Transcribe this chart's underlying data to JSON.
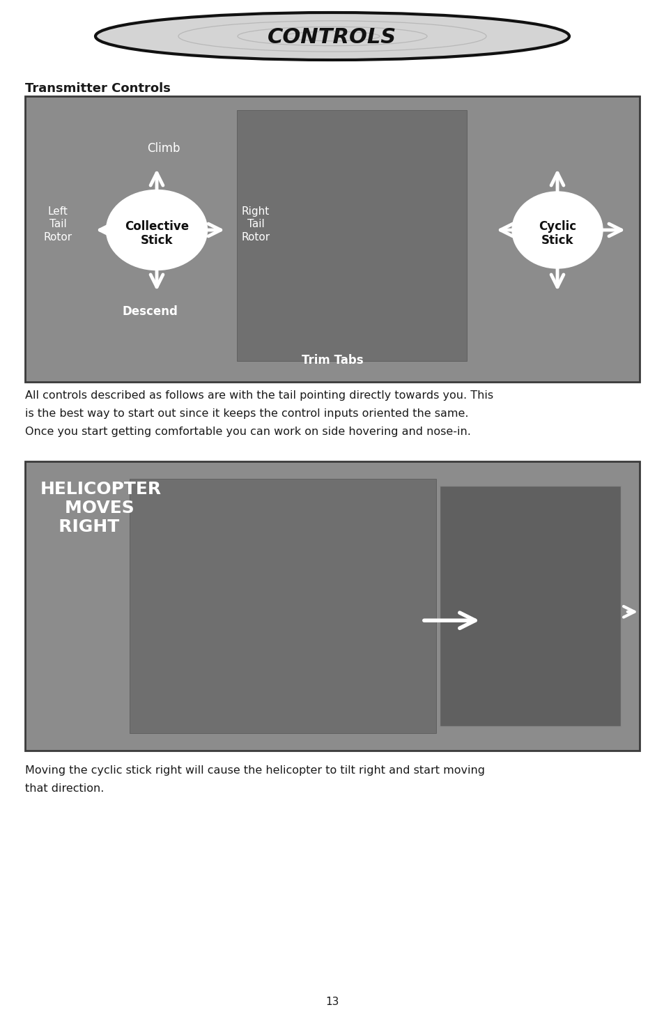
{
  "bg_color": "#ffffff",
  "title_text": "CONTROLS",
  "section1_heading": "Transmitter Controls",
  "image1_bg": "#8c8c8c",
  "image2_bg": "#8c8c8c",
  "image2_heli_text": "HELICOPTER\n    MOVES\n   RIGHT",
  "para1_line1": "All controls described as follows are with the tail pointing directly towards you. This",
  "para1_line2": "is the best way to start out since it keeps the control inputs oriented the same.",
  "para1_line3": "Once you start getting comfortable you can work on side hovering and nose-in.",
  "para2_line1": "Moving the cyclic stick right will cause the helicopter to tilt right and start moving",
  "para2_line2": "that direction.",
  "page_number": "13",
  "font_color": "#1a1a1a"
}
